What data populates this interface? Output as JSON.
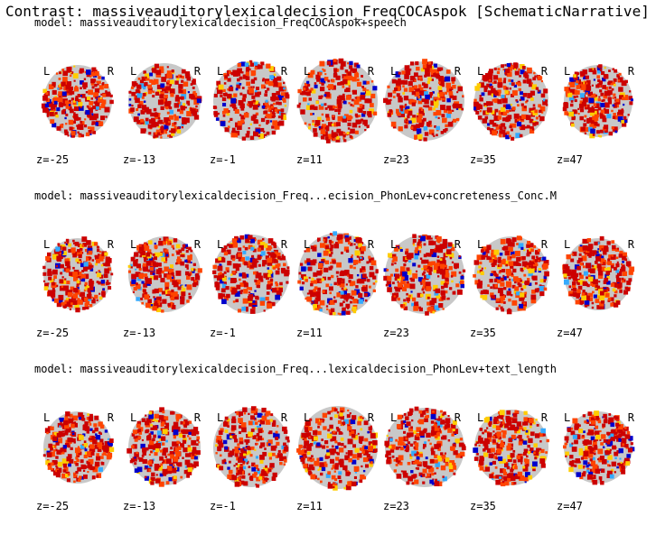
{
  "title": "Contrast: massiveauditorylexicaldecision_FreqCOCAspok [SchematicNarrative]",
  "orientation": {
    "left": "L",
    "right": "R"
  },
  "colors": {
    "positive_low": "#cc0000",
    "positive_mid": "#ff4400",
    "positive_high": "#ffcc00",
    "negative_low": "#0000cc",
    "negative_high": "#33aaff",
    "brain": "#c8c8c8"
  },
  "rows": [
    {
      "model": "model: massiveauditorylexicaldecision_FreqCOCAspok+speech",
      "slices": [
        "z=-25",
        "z=-13",
        "z=-1",
        "z=11",
        "z=23",
        "z=35",
        "z=47"
      ]
    },
    {
      "model": "model: massiveauditorylexicaldecision_Freq...ecision_PhonLev+concreteness_Conc.M",
      "slices": [
        "z=-25",
        "z=-13",
        "z=-1",
        "z=11",
        "z=23",
        "z=35",
        "z=47"
      ]
    },
    {
      "model": "model: massiveauditorylexicaldecision_Freq...lexicaldecision_PhonLev+text_length",
      "slices": [
        "z=-25",
        "z=-13",
        "z=-1",
        "z=11",
        "z=23",
        "z=35",
        "z=47"
      ]
    }
  ]
}
